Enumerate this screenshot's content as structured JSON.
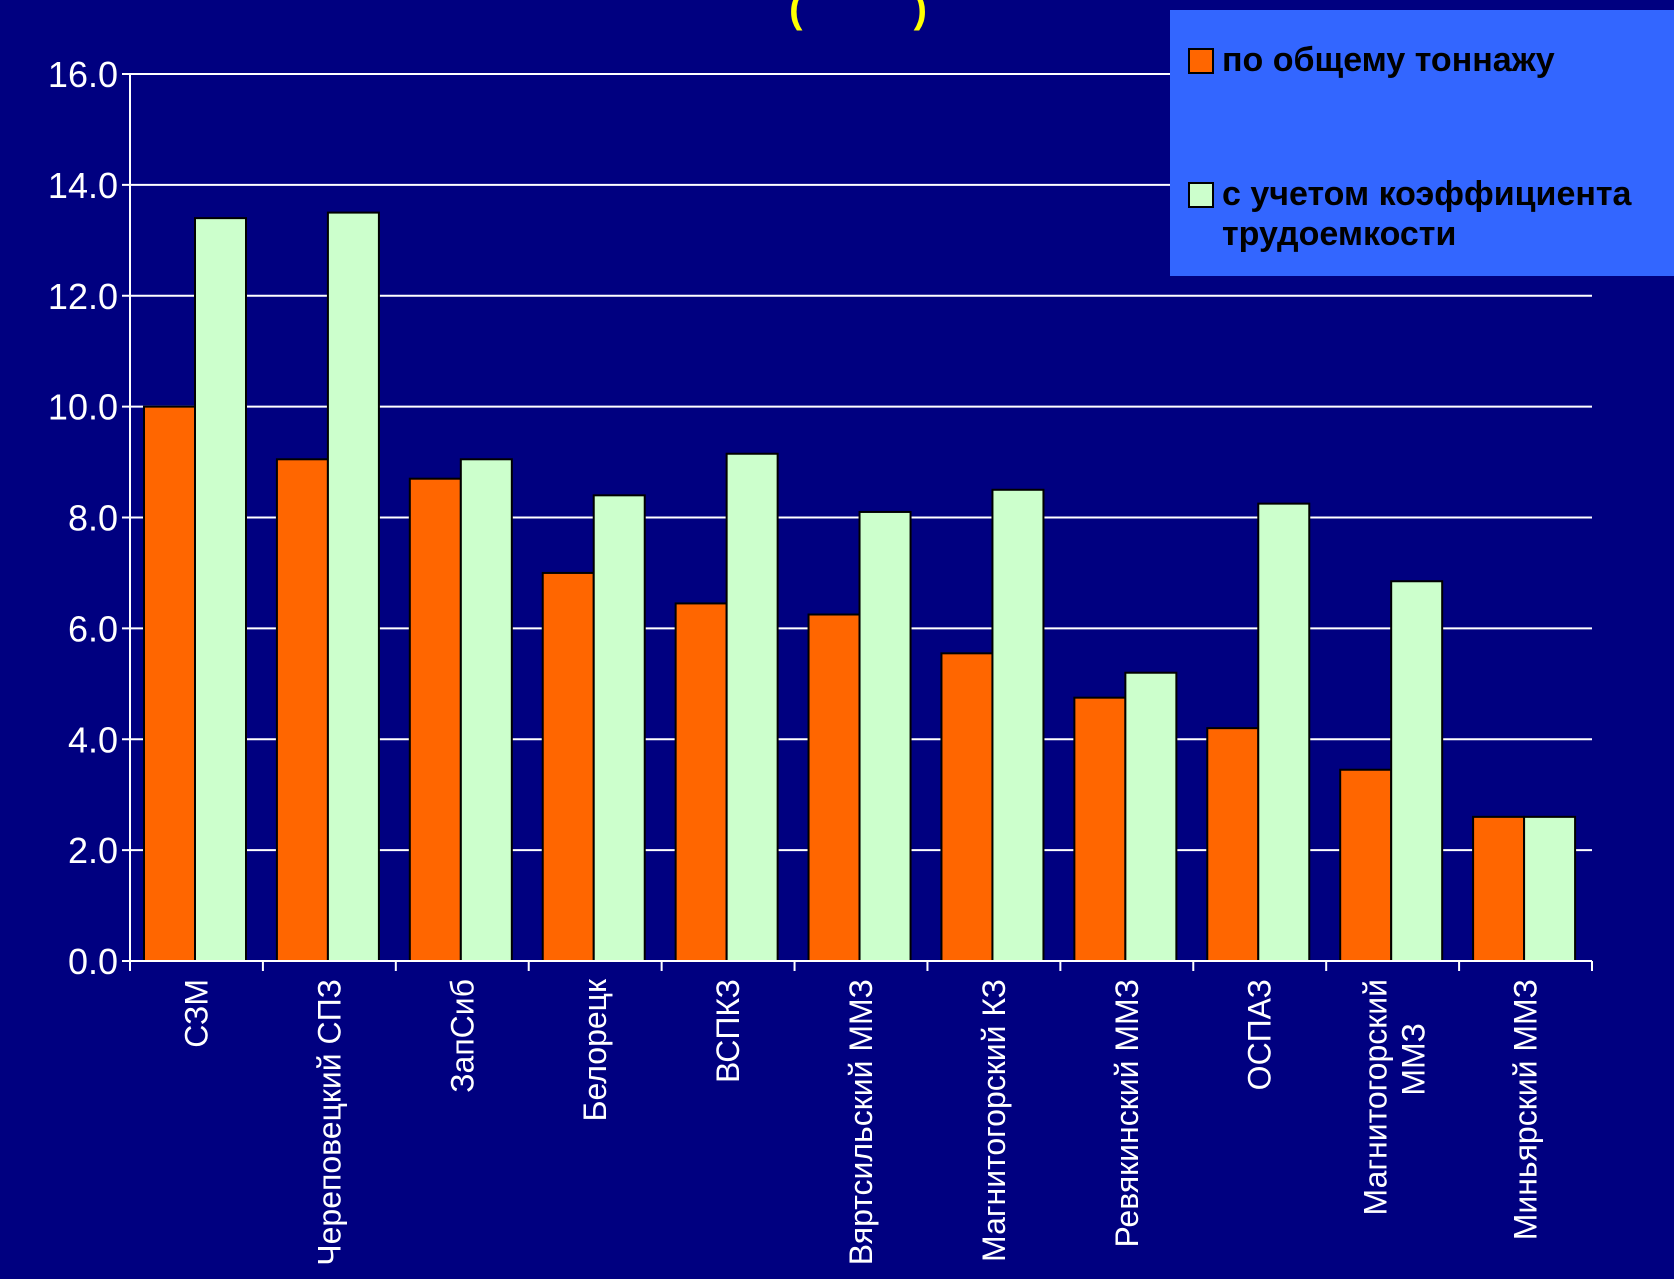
{
  "title_fragment": "(          )",
  "legend": {
    "items": [
      {
        "label": "по общему тоннажу",
        "color": "#ff6600"
      },
      {
        "label": "с учетом коэффициента трудоемкости",
        "color": "#ccffcc"
      }
    ]
  },
  "colors": {
    "background": "#000080",
    "legend_bg": "#3366ff",
    "title": "#ffff00",
    "axis": "#ffffff"
  },
  "chart_data": {
    "type": "bar",
    "categories": [
      "СЗМ",
      "Череповецкий СПЗ",
      "ЗапСиб",
      "Белорецк",
      "ВСПКЗ",
      "Вяртсильский ММЗ",
      "Магнитогорский КЗ",
      "Ревякинский ММЗ",
      "ОСПАЗ",
      "Магнитогорский ММЗ",
      "Миньярский ММЗ"
    ],
    "series": [
      {
        "name": "по общему тоннажу",
        "values": [
          10.0,
          9.05,
          8.7,
          7.0,
          6.45,
          6.25,
          5.55,
          4.75,
          4.2,
          3.45,
          2.6
        ]
      },
      {
        "name": "с учетом коэффициента трудоемкости",
        "values": [
          13.4,
          13.5,
          9.05,
          8.4,
          9.15,
          8.1,
          8.5,
          5.2,
          8.25,
          6.85,
          2.6
        ]
      }
    ],
    "ylim": [
      0,
      16
    ],
    "yticks": [
      "0.0",
      "2.0",
      "4.0",
      "6.0",
      "8.0",
      "10.0",
      "12.0",
      "14.0",
      "16.0"
    ],
    "grid": true,
    "legend_position": "top-right"
  }
}
